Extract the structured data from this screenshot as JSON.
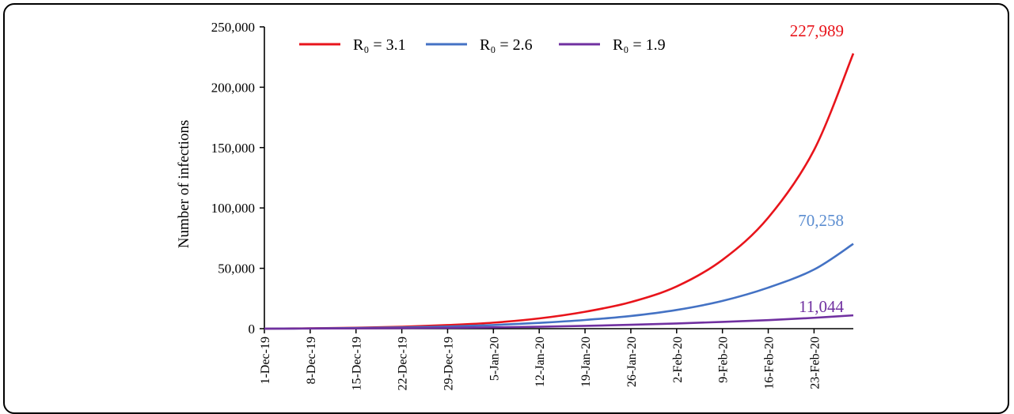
{
  "chart_data": {
    "type": "line",
    "ylabel": "Number of infections",
    "xlabel": "",
    "ylim": [
      0,
      250000
    ],
    "yticks": [
      0,
      50000,
      100000,
      150000,
      200000,
      250000
    ],
    "ytick_labels": [
      "0",
      "50,000",
      "100,000",
      "150,000",
      "200,000",
      "250,000"
    ],
    "xlim": [
      "2019-12-01",
      "2020-02-29"
    ],
    "xtick_labels": [
      "1-Dec-19",
      "8-Dec-19",
      "15-Dec-19",
      "22-Dec-19",
      "29-Dec-19",
      "5-Jan-20",
      "12-Jan-20",
      "19-Jan-20",
      "26-Jan-20",
      "2-Feb-20",
      "9-Feb-20",
      "16-Feb-20",
      "23-Feb-20"
    ],
    "legend_position": "top",
    "series": [
      {
        "name": "R₀ = 3.1",
        "color": "#e8141b",
        "end_label": "227,989",
        "x": [
          "2019-12-01",
          "2019-12-08",
          "2019-12-15",
          "2019-12-22",
          "2019-12-29",
          "2020-01-05",
          "2020-01-12",
          "2020-01-19",
          "2020-01-26",
          "2020-02-02",
          "2020-02-09",
          "2020-02-16",
          "2020-02-23",
          "2020-02-29"
        ],
        "y": [
          0,
          300,
          800,
          1600,
          3000,
          5000,
          8500,
          14000,
          22000,
          35000,
          57000,
          92000,
          148000,
          227989
        ]
      },
      {
        "name": "R₀ = 2.6",
        "color": "#4472c4",
        "end_label": "70,258",
        "label_color": "#5b8dd0",
        "x": [
          "2019-12-01",
          "2019-12-08",
          "2019-12-15",
          "2019-12-22",
          "2019-12-29",
          "2020-01-05",
          "2020-01-12",
          "2020-01-19",
          "2020-01-26",
          "2020-02-02",
          "2020-02-09",
          "2020-02-16",
          "2020-02-23",
          "2020-02-29"
        ],
        "y": [
          0,
          200,
          500,
          1000,
          1800,
          3000,
          4800,
          7200,
          10500,
          15500,
          23000,
          34000,
          49000,
          70258
        ]
      },
      {
        "name": "R₀ = 1.9",
        "color": "#7030a0",
        "end_label": "11,044",
        "x": [
          "2019-12-01",
          "2019-12-08",
          "2019-12-15",
          "2019-12-22",
          "2019-12-29",
          "2020-01-05",
          "2020-01-12",
          "2020-01-19",
          "2020-01-26",
          "2020-02-02",
          "2020-02-09",
          "2020-02-16",
          "2020-02-23",
          "2020-02-29"
        ],
        "y": [
          0,
          100,
          250,
          450,
          700,
          1100,
          1600,
          2300,
          3200,
          4300,
          5600,
          7100,
          9000,
          11044
        ]
      }
    ]
  }
}
